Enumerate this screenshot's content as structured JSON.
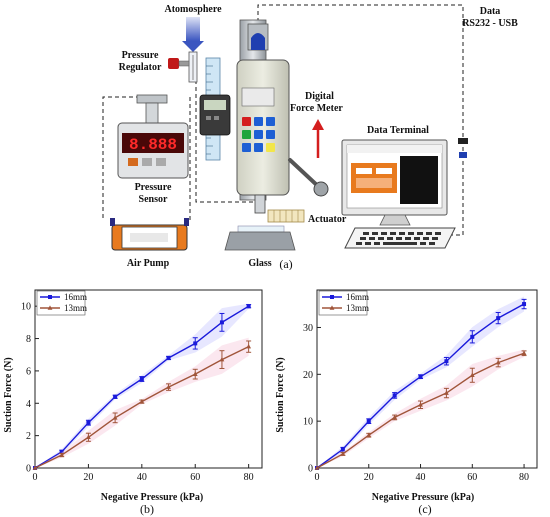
{
  "diagram": {
    "labels": {
      "atmosphere": "Atomosphere",
      "pressure_regulator_1": "Pressure",
      "pressure_regulator_2": "Regulator",
      "digital_force_meter_1": "Digital",
      "digital_force_meter_2": "Force Meter",
      "data_1": "Data",
      "data_2": "RS232 - USB",
      "data_terminal": "Data Terminal",
      "pressure_sensor_1": "Pressure",
      "pressure_sensor_2": "Sensor",
      "actuator": "Actuator",
      "air_pump": "Air Pump",
      "glass": "Glass",
      "panel": "(a)"
    },
    "sensor_display": "8.888"
  },
  "chart_data": [
    {
      "type": "line",
      "panel": "(b)",
      "xlabel": "Negative Pressure (kPa)",
      "ylabel": "Suction Force (N)",
      "xlim": [
        0,
        85
      ],
      "ylim": [
        0,
        11
      ],
      "xticks": [
        0,
        20,
        40,
        60,
        80
      ],
      "yticks": [
        0,
        2,
        4,
        6,
        8,
        10
      ],
      "legend_position": "top-left",
      "series": [
        {
          "name": "16mm",
          "color": "#1a1adb",
          "marker": "square",
          "x": [
            0,
            10,
            20,
            30,
            40,
            50,
            60,
            70,
            80
          ],
          "y": [
            0,
            1.0,
            2.8,
            4.4,
            5.5,
            6.8,
            7.7,
            9.0,
            10.0
          ],
          "err": [
            0,
            0.1,
            0.15,
            0.1,
            0.15,
            0.1,
            0.35,
            0.55,
            0.1
          ]
        },
        {
          "name": "13mm",
          "color": "#a0553a",
          "marker": "triangle",
          "x": [
            0,
            10,
            20,
            30,
            40,
            50,
            60,
            70,
            80
          ],
          "y": [
            0,
            0.8,
            1.9,
            3.1,
            4.1,
            5.0,
            5.8,
            6.7,
            7.5
          ],
          "err": [
            0,
            0.1,
            0.25,
            0.3,
            0.1,
            0.2,
            0.3,
            0.55,
            0.35
          ]
        }
      ]
    },
    {
      "type": "line",
      "panel": "(c)",
      "xlabel": "Negative Pressure (kPa)",
      "ylabel": "Suction Force (N)",
      "xlim": [
        0,
        85
      ],
      "ylim": [
        0,
        38
      ],
      "xticks": [
        0,
        20,
        40,
        60,
        80
      ],
      "yticks": [
        0,
        10,
        20,
        30
      ],
      "legend_position": "top-left",
      "series": [
        {
          "name": "16mm",
          "color": "#1a1adb",
          "marker": "square",
          "x": [
            0,
            10,
            20,
            30,
            40,
            50,
            60,
            70,
            80
          ],
          "y": [
            0,
            4.0,
            10.0,
            15.5,
            19.5,
            22.8,
            28.0,
            32.0,
            35.0
          ],
          "err": [
            0,
            0.4,
            0.5,
            0.6,
            0.4,
            0.8,
            1.3,
            1.2,
            1.0
          ]
        },
        {
          "name": "13mm",
          "color": "#a0553a",
          "marker": "triangle",
          "x": [
            0,
            10,
            20,
            30,
            40,
            50,
            60,
            70,
            80
          ],
          "y": [
            0,
            3.0,
            7.0,
            10.8,
            13.5,
            16.0,
            19.8,
            22.5,
            24.5
          ],
          "err": [
            0,
            0.3,
            0.4,
            0.5,
            0.8,
            1.0,
            1.5,
            0.9,
            0.5
          ]
        }
      ]
    }
  ]
}
